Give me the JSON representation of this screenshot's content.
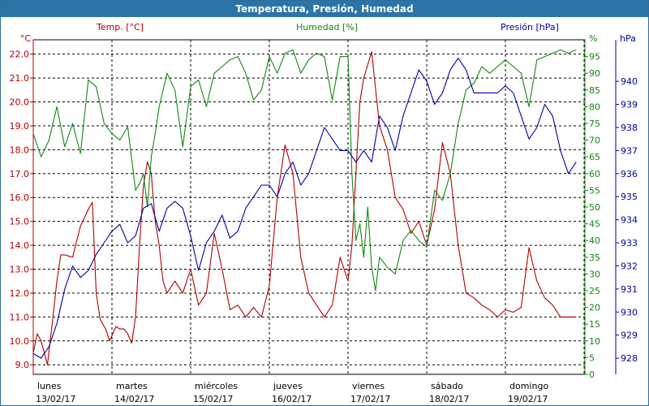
{
  "window": {
    "title": "Temperatura, Presión, Humedad"
  },
  "colors": {
    "temp": "#b00000",
    "hum": "#118811",
    "pres": "#00009c",
    "grid": "#000000",
    "title_bg": "#2a74a8"
  },
  "chart_data": {
    "type": "line",
    "title": "Temperatura, Presión, Humedad",
    "grid": true,
    "legend": "top",
    "x_categories": [
      {
        "day": "lunes",
        "date": "13/02/17"
      },
      {
        "day": "martes",
        "date": "14/02/17"
      },
      {
        "day": "miércoles",
        "date": "15/02/17"
      },
      {
        "day": "jueves",
        "date": "16/02/17"
      },
      {
        "day": "viernes",
        "date": "17/02/17"
      },
      {
        "day": "sábado",
        "date": "18/02/17"
      },
      {
        "day": "domingo",
        "date": "19/02/17"
      }
    ],
    "axes": {
      "temp": {
        "label": "Temp. [°C]",
        "unit": "°C",
        "ylim": [
          8.6,
          22.6
        ],
        "ticks": [
          9.0,
          10.0,
          11.0,
          12.0,
          13.0,
          14.0,
          15.0,
          16.0,
          17.0,
          18.0,
          19.0,
          20.0,
          21.0,
          22.0
        ]
      },
      "hum": {
        "label": "Humedad [%]",
        "unit": "%",
        "ylim": [
          0,
          100
        ],
        "ticks": [
          0,
          5,
          10,
          15,
          20,
          25,
          30,
          35,
          40,
          45,
          50,
          55,
          60,
          65,
          70,
          75,
          80,
          85,
          90,
          95
        ]
      },
      "pres": {
        "label": "Presión [hPa]",
        "unit": "hPa",
        "ylim": [
          927.3,
          941.8
        ],
        "ticks": [
          928,
          929,
          930,
          931,
          932,
          933,
          934,
          935,
          936,
          937,
          938,
          939,
          940
        ]
      }
    },
    "series": [
      {
        "name": "Temp. [°C]",
        "axis": "temp",
        "x": [
          0.0,
          0.05,
          0.1,
          0.18,
          0.25,
          0.3,
          0.35,
          0.4,
          0.5,
          0.6,
          0.7,
          0.75,
          0.8,
          0.85,
          0.92,
          0.97,
          1.05,
          1.1,
          1.15,
          1.2,
          1.25,
          1.3,
          1.35,
          1.4,
          1.45,
          1.5,
          1.55,
          1.6,
          1.65,
          1.7,
          1.8,
          1.9,
          2.0,
          2.1,
          2.2,
          2.3,
          2.4,
          2.5,
          2.6,
          2.7,
          2.8,
          2.9,
          3.0,
          3.1,
          3.2,
          3.3,
          3.4,
          3.5,
          3.6,
          3.7,
          3.8,
          3.9,
          4.0,
          4.05,
          4.1,
          4.15,
          4.2,
          4.3,
          4.4,
          4.5,
          4.6,
          4.7,
          4.8,
          4.9,
          5.0,
          5.1,
          5.2,
          5.3,
          5.4,
          5.5,
          5.6,
          5.7,
          5.8,
          5.9,
          6.0,
          6.1,
          6.2,
          6.3,
          6.4,
          6.5,
          6.6,
          6.7,
          6.8,
          6.9
        ],
        "y": [
          9.5,
          10.3,
          10.0,
          9.0,
          11.0,
          12.5,
          13.6,
          13.6,
          13.5,
          14.8,
          15.5,
          15.8,
          12.0,
          10.9,
          10.5,
          10.0,
          10.6,
          10.5,
          10.5,
          10.3,
          9.9,
          11.0,
          14.0,
          16.5,
          17.5,
          17.0,
          15.0,
          14.0,
          12.5,
          12.0,
          12.5,
          12.0,
          13.0,
          11.5,
          12.0,
          14.5,
          13.0,
          11.3,
          11.5,
          11.0,
          11.4,
          11.0,
          12.3,
          16.0,
          18.2,
          17.0,
          13.5,
          12.0,
          11.5,
          11.0,
          11.5,
          13.5,
          12.5,
          14.0,
          17.0,
          20.0,
          21.0,
          22.1,
          19.0,
          18.0,
          16.0,
          15.5,
          14.5,
          15.0,
          14.0,
          15.5,
          18.3,
          17.0,
          14.0,
          12.0,
          11.8,
          11.5,
          11.3,
          11.0,
          11.3,
          11.2,
          11.4,
          13.9,
          12.5,
          11.8,
          11.5,
          11.0,
          11.0,
          11.0
        ]
      },
      {
        "name": "Humedad [%]",
        "axis": "hum",
        "x": [
          0.0,
          0.1,
          0.2,
          0.3,
          0.4,
          0.5,
          0.6,
          0.7,
          0.8,
          0.9,
          1.0,
          1.1,
          1.2,
          1.3,
          1.35,
          1.4,
          1.45,
          1.5,
          1.55,
          1.6,
          1.7,
          1.8,
          1.9,
          2.0,
          2.1,
          2.2,
          2.3,
          2.4,
          2.5,
          2.6,
          2.7,
          2.8,
          2.9,
          3.0,
          3.1,
          3.2,
          3.3,
          3.4,
          3.5,
          3.6,
          3.7,
          3.8,
          3.9,
          4.0,
          4.05,
          4.1,
          4.15,
          4.2,
          4.25,
          4.3,
          4.35,
          4.4,
          4.5,
          4.6,
          4.7,
          4.8,
          4.9,
          5.0,
          5.1,
          5.2,
          5.3,
          5.4,
          5.5,
          5.6,
          5.7,
          5.8,
          5.9,
          6.0,
          6.1,
          6.2,
          6.3,
          6.4,
          6.5,
          6.6,
          6.7,
          6.8,
          6.9
        ],
        "y": [
          72,
          65,
          70,
          80,
          68,
          75,
          66,
          88,
          86,
          75,
          72,
          70,
          74,
          55,
          57,
          60,
          50,
          65,
          72,
          80,
          90,
          85,
          68,
          86,
          88,
          80,
          90,
          92,
          94,
          95,
          90,
          82,
          85,
          95,
          90,
          96,
          97,
          90,
          94,
          96,
          95,
          82,
          95,
          95,
          60,
          40,
          45,
          35,
          50,
          32,
          25,
          35,
          32,
          30,
          40,
          43,
          40,
          38,
          55,
          52,
          60,
          75,
          85,
          87,
          92,
          90,
          92,
          94,
          92,
          90,
          80,
          94,
          95,
          96,
          97,
          96,
          97
        ]
      },
      {
        "name": "Presión [hPa]",
        "axis": "pres",
        "x": [
          0.0,
          0.1,
          0.2,
          0.3,
          0.4,
          0.5,
          0.6,
          0.7,
          0.8,
          0.9,
          1.0,
          1.1,
          1.2,
          1.3,
          1.4,
          1.5,
          1.6,
          1.7,
          1.8,
          1.9,
          2.0,
          2.1,
          2.2,
          2.3,
          2.4,
          2.5,
          2.6,
          2.7,
          2.8,
          2.9,
          3.0,
          3.1,
          3.2,
          3.3,
          3.4,
          3.5,
          3.6,
          3.7,
          3.8,
          3.9,
          4.0,
          4.1,
          4.2,
          4.3,
          4.4,
          4.5,
          4.6,
          4.7,
          4.8,
          4.9,
          5.0,
          5.1,
          5.2,
          5.3,
          5.4,
          5.5,
          5.6,
          5.7,
          5.8,
          5.9,
          6.0,
          6.1,
          6.2,
          6.3,
          6.4,
          6.5,
          6.6,
          6.7,
          6.8,
          6.9
        ],
        "y": [
          928.2,
          928.0,
          928.5,
          929.5,
          931.0,
          932.0,
          931.5,
          931.8,
          932.5,
          933.0,
          933.5,
          933.8,
          933.0,
          933.3,
          934.5,
          934.7,
          933.5,
          934.5,
          934.8,
          934.5,
          933.3,
          931.8,
          933.0,
          933.5,
          934.2,
          933.2,
          933.5,
          934.5,
          935.0,
          935.5,
          935.5,
          935.0,
          936.0,
          936.5,
          935.5,
          936.0,
          937.0,
          938.0,
          937.5,
          937.0,
          937.0,
          936.5,
          937.0,
          936.5,
          938.5,
          938.0,
          937.0,
          938.5,
          939.5,
          940.5,
          940.0,
          939.0,
          939.5,
          940.5,
          941.0,
          940.5,
          939.5,
          939.5,
          939.5,
          939.5,
          939.8,
          939.5,
          938.5,
          937.5,
          938.0,
          939.0,
          938.5,
          937.0,
          936.0,
          936.5
        ]
      }
    ]
  }
}
